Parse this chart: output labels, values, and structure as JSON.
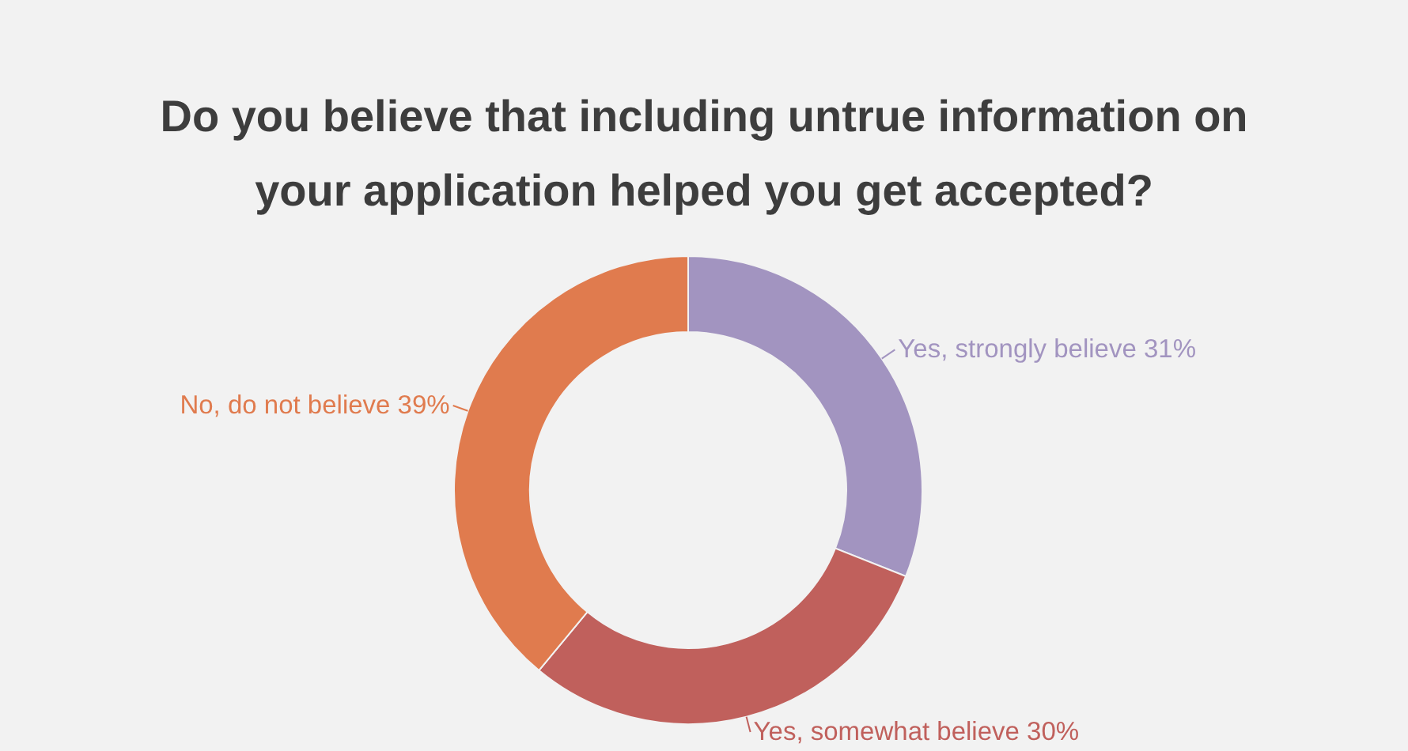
{
  "chart_data": {
    "type": "donut",
    "title": "Do you believe that including untrue information on your application helped you get accepted?",
    "categories": [
      "Yes, strongly believe",
      "Yes, somewhat believe",
      "No, do not believe"
    ],
    "values": [
      31,
      30,
      39
    ],
    "colors": [
      "#a294c0",
      "#c0605c",
      "#e07b4e"
    ],
    "value_labels": [
      "31%",
      "30%",
      "39%"
    ]
  }
}
